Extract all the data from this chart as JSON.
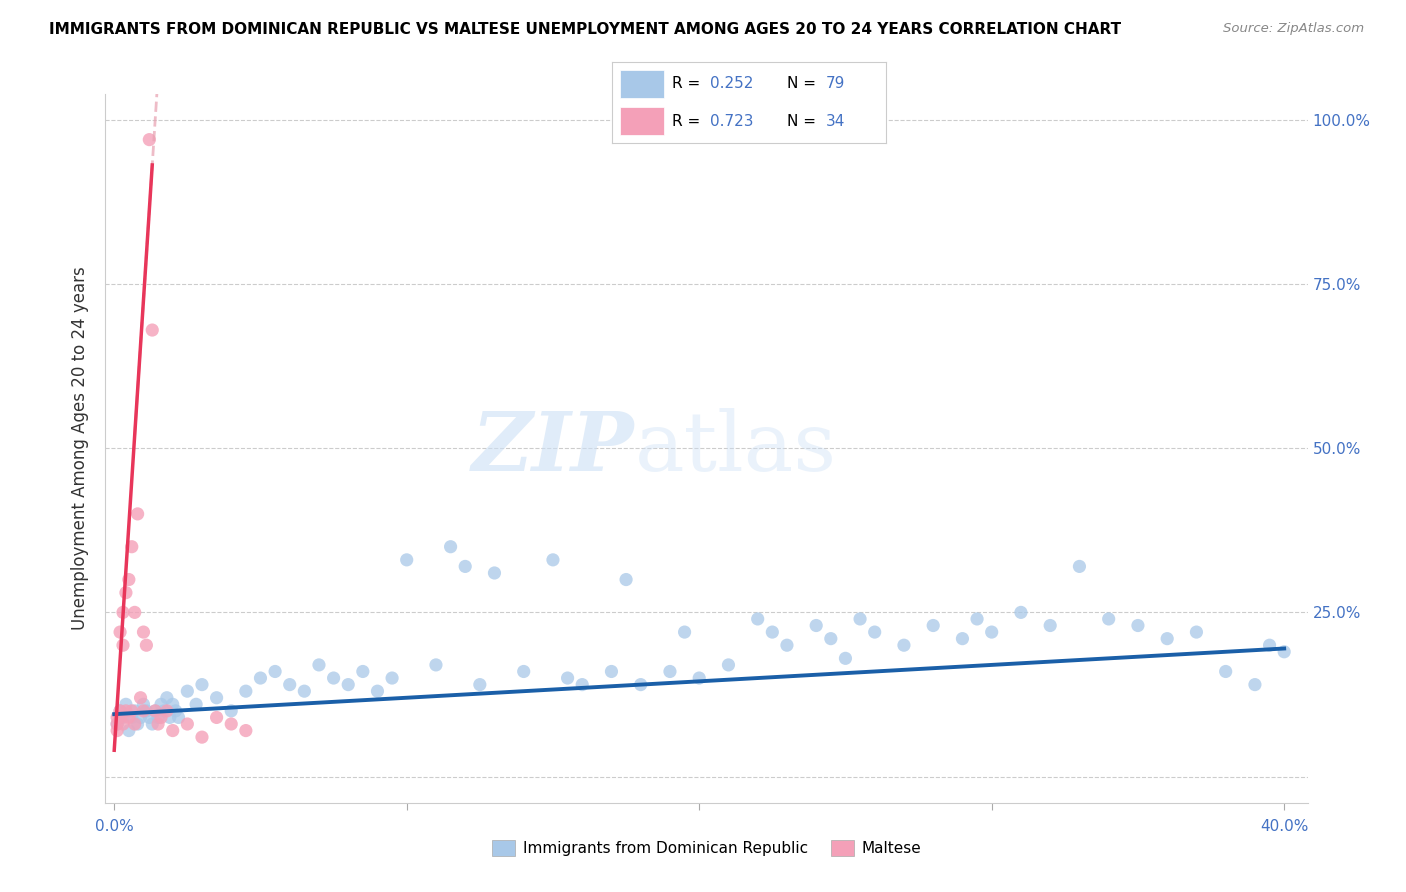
{
  "title": "IMMIGRANTS FROM DOMINICAN REPUBLIC VS MALTESE UNEMPLOYMENT AMONG AGES 20 TO 24 YEARS CORRELATION CHART",
  "source": "Source: ZipAtlas.com",
  "ylabel": "Unemployment Among Ages 20 to 24 years",
  "blue_color": "#a8c8e8",
  "pink_color": "#f4a0b8",
  "blue_line_color": "#1a5fa8",
  "pink_line_color": "#e8365a",
  "pink_dash_color": "#e8a0b0",
  "accent_blue": "#4472c4",
  "right_ytick_labels": [
    "",
    "25.0%",
    "50.0%",
    "75.0%",
    "100.0%"
  ],
  "watermark_zip_color": "#ddeeff",
  "watermark_atlas_color": "#c8dff5",
  "blue_R": 0.252,
  "blue_N": 79,
  "pink_R": 0.723,
  "pink_N": 34,
  "xlim": [
    -0.003,
    0.408
  ],
  "ylim": [
    -0.04,
    1.04
  ],
  "blue_scatter_x": [
    0.001,
    0.002,
    0.003,
    0.004,
    0.005,
    0.006,
    0.007,
    0.008,
    0.009,
    0.01,
    0.011,
    0.012,
    0.013,
    0.014,
    0.015,
    0.016,
    0.017,
    0.018,
    0.019,
    0.02,
    0.021,
    0.022,
    0.025,
    0.028,
    0.03,
    0.035,
    0.04,
    0.045,
    0.05,
    0.055,
    0.06,
    0.065,
    0.07,
    0.075,
    0.08,
    0.085,
    0.09,
    0.095,
    0.1,
    0.11,
    0.115,
    0.12,
    0.125,
    0.13,
    0.14,
    0.15,
    0.155,
    0.16,
    0.17,
    0.175,
    0.18,
    0.19,
    0.195,
    0.2,
    0.21,
    0.22,
    0.225,
    0.23,
    0.24,
    0.245,
    0.25,
    0.255,
    0.26,
    0.27,
    0.28,
    0.29,
    0.295,
    0.3,
    0.31,
    0.32,
    0.33,
    0.34,
    0.35,
    0.36,
    0.37,
    0.38,
    0.39,
    0.395,
    0.4
  ],
  "blue_scatter_y": [
    0.08,
    0.1,
    0.09,
    0.11,
    0.07,
    0.09,
    0.1,
    0.08,
    0.09,
    0.11,
    0.1,
    0.09,
    0.08,
    0.1,
    0.09,
    0.11,
    0.1,
    0.12,
    0.09,
    0.11,
    0.1,
    0.09,
    0.13,
    0.11,
    0.14,
    0.12,
    0.1,
    0.13,
    0.15,
    0.16,
    0.14,
    0.13,
    0.17,
    0.15,
    0.14,
    0.16,
    0.13,
    0.15,
    0.33,
    0.17,
    0.35,
    0.32,
    0.14,
    0.31,
    0.16,
    0.33,
    0.15,
    0.14,
    0.16,
    0.3,
    0.14,
    0.16,
    0.22,
    0.15,
    0.17,
    0.24,
    0.22,
    0.2,
    0.23,
    0.21,
    0.18,
    0.24,
    0.22,
    0.2,
    0.23,
    0.21,
    0.24,
    0.22,
    0.25,
    0.23,
    0.32,
    0.24,
    0.23,
    0.21,
    0.22,
    0.16,
    0.14,
    0.2,
    0.19
  ],
  "pink_scatter_x": [
    0.001,
    0.001,
    0.001,
    0.002,
    0.002,
    0.002,
    0.003,
    0.003,
    0.003,
    0.004,
    0.004,
    0.005,
    0.005,
    0.006,
    0.006,
    0.007,
    0.007,
    0.008,
    0.009,
    0.01,
    0.01,
    0.011,
    0.012,
    0.013,
    0.014,
    0.015,
    0.016,
    0.018,
    0.02,
    0.025,
    0.03,
    0.035,
    0.04,
    0.045
  ],
  "pink_scatter_y": [
    0.07,
    0.09,
    0.08,
    0.1,
    0.09,
    0.22,
    0.08,
    0.25,
    0.2,
    0.1,
    0.28,
    0.09,
    0.3,
    0.35,
    0.1,
    0.25,
    0.08,
    0.4,
    0.12,
    0.22,
    0.1,
    0.2,
    0.97,
    0.68,
    0.1,
    0.08,
    0.09,
    0.1,
    0.07,
    0.08,
    0.06,
    0.09,
    0.08,
    0.07
  ]
}
